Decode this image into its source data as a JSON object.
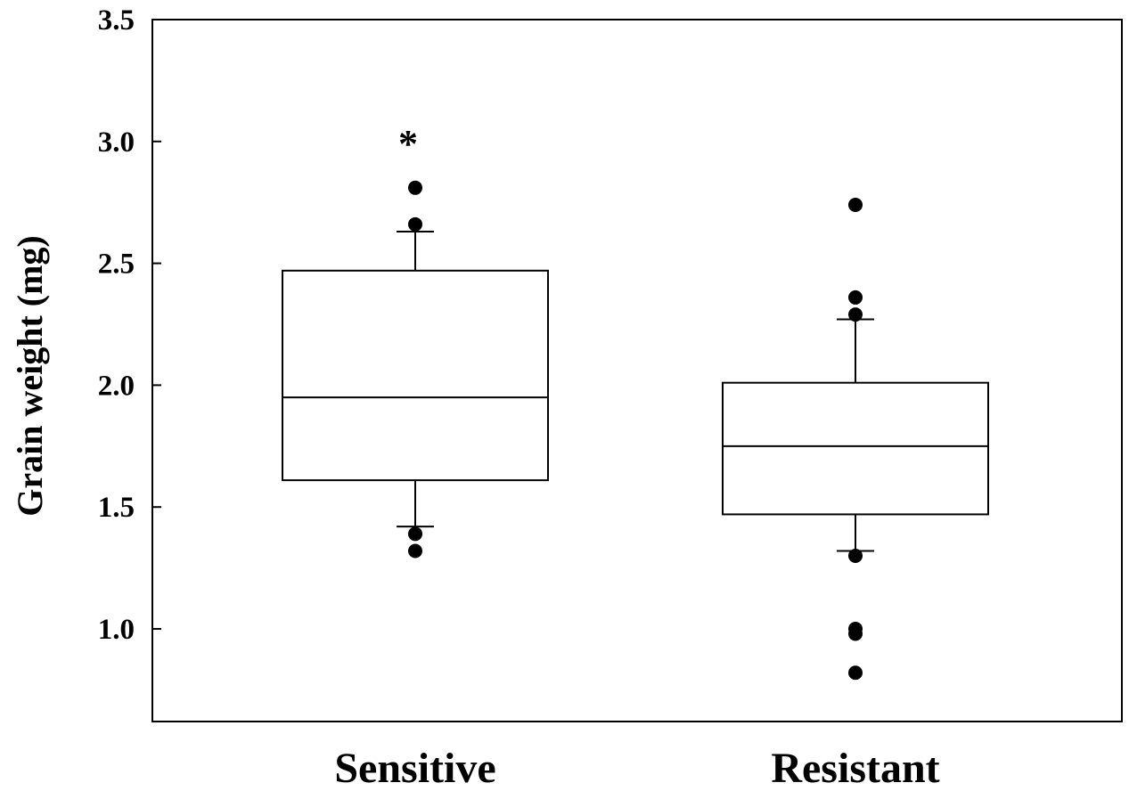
{
  "chart_data": {
    "type": "boxplot",
    "ylabel": "Grain weight (mg)",
    "xlabel": "",
    "ylim": [
      0.62,
      3.5
    ],
    "yticks": [
      "1.0",
      "1.5",
      "2.0",
      "2.5",
      "3.0",
      "3.5"
    ],
    "grid": false,
    "categories": [
      "Sensitive",
      "Resistant"
    ],
    "series": [
      {
        "category": "Sensitive",
        "q1": 1.61,
        "median": 1.95,
        "q3": 2.47,
        "whisker_low": 1.42,
        "whisker_high": 2.63,
        "outliers": [
          2.81,
          2.66,
          1.39,
          1.32
        ],
        "annotation": "*"
      },
      {
        "category": "Resistant",
        "q1": 1.47,
        "median": 1.75,
        "q3": 2.01,
        "whisker_low": 1.32,
        "whisker_high": 2.27,
        "outliers": [
          2.74,
          2.36,
          2.29,
          1.3,
          1.0,
          0.98,
          0.82
        ],
        "annotation": ""
      }
    ]
  }
}
